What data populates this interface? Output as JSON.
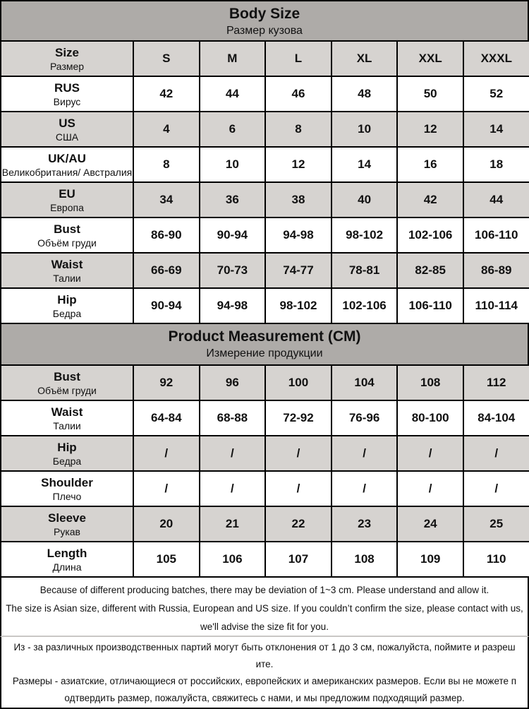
{
  "colors": {
    "band_bg": "#aeaba8",
    "stripe_bg": "#d6d3d0",
    "row_bg": "#ffffff",
    "border": "#000000",
    "note_divider": "#c9c7c5",
    "text": "#111111"
  },
  "body_size": {
    "title": "Body Size",
    "subtitle": "Размер кузова",
    "rows": [
      {
        "label": "Size",
        "label_ru": "Размер",
        "values": [
          "S",
          "M",
          "L",
          "XL",
          "XXL",
          "XXXL"
        ]
      },
      {
        "label": "RUS",
        "label_ru": "Вирус",
        "values": [
          "42",
          "44",
          "46",
          "48",
          "50",
          "52"
        ]
      },
      {
        "label": "US",
        "label_ru": "США",
        "values": [
          "4",
          "6",
          "8",
          "10",
          "12",
          "14"
        ]
      },
      {
        "label": "UK/AU",
        "label_ru": "Великобритания/ Австралия",
        "values": [
          "8",
          "10",
          "12",
          "14",
          "16",
          "18"
        ]
      },
      {
        "label": "EU",
        "label_ru": "Европа",
        "values": [
          "34",
          "36",
          "38",
          "40",
          "42",
          "44"
        ]
      },
      {
        "label": "Bust",
        "label_ru": "Объём груди",
        "values": [
          "86-90",
          "90-94",
          "94-98",
          "98-102",
          "102-106",
          "106-110"
        ]
      },
      {
        "label": "Waist",
        "label_ru": "Талии",
        "values": [
          "66-69",
          "70-73",
          "74-77",
          "78-81",
          "82-85",
          "86-89"
        ]
      },
      {
        "label": "Hip",
        "label_ru": "Бедра",
        "values": [
          "90-94",
          "94-98",
          "98-102",
          "102-106",
          "106-110",
          "110-114"
        ]
      }
    ]
  },
  "product_measurement": {
    "title": "Product Measurement (CM)",
    "subtitle": "Измерение продукции",
    "rows": [
      {
        "label": "Bust",
        "label_ru": "Объём груди",
        "values": [
          "92",
          "96",
          "100",
          "104",
          "108",
          "112"
        ]
      },
      {
        "label": "Waist",
        "label_ru": "Талии",
        "values": [
          "64-84",
          "68-88",
          "72-92",
          "76-96",
          "80-100",
          "84-104"
        ]
      },
      {
        "label": "Hip",
        "label_ru": "Бедра",
        "values": [
          "/",
          "/",
          "/",
          "/",
          "/",
          "/"
        ]
      },
      {
        "label": "Shoulder",
        "label_ru": "Плечо",
        "values": [
          "/",
          "/",
          "/",
          "/",
          "/",
          "/"
        ]
      },
      {
        "label": "Sleeve",
        "label_ru": "Рукав",
        "values": [
          "20",
          "21",
          "22",
          "23",
          "24",
          "25"
        ]
      },
      {
        "label": "Length",
        "label_ru": "Длина",
        "values": [
          "105",
          "106",
          "107",
          "108",
          "109",
          "110"
        ]
      }
    ]
  },
  "notes": {
    "english_lines": [
      "Because of different producing batches, there may be deviation of 1~3 cm. Please understand and allow it.",
      "The size is Asian size, different with Russia, European and US size. If you couldn’t confirm the size, please contact with us,",
      "we'll advise the size fit for you."
    ],
    "russian_lines": [
      "Из - за различных производственных партий могут быть отклонения от 1 до 3 см, пожалуйста, поймите и разреш",
      "ите.",
      "Размеры - азиатские, отличающиеся от российских, европейских и американских размеров. Если вы не можете п",
      "одтвердить размер, пожалуйста, свяжитесь с нами, и мы предложим подходящий размер."
    ]
  }
}
